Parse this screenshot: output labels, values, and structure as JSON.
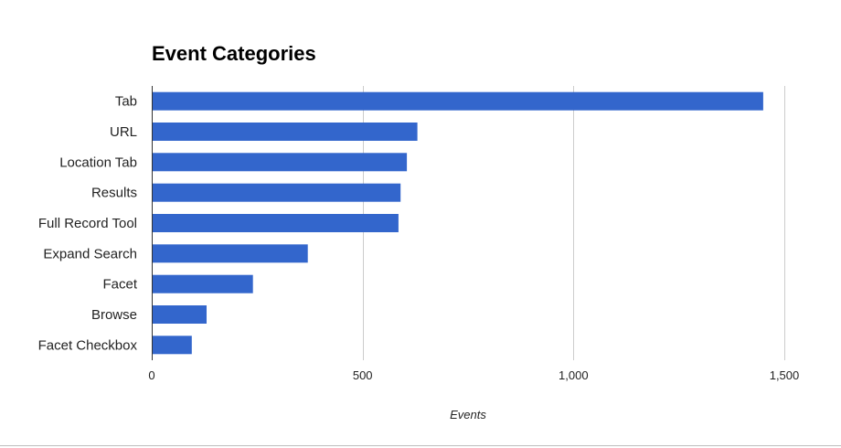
{
  "chart_data": {
    "type": "bar",
    "orientation": "horizontal",
    "title": "Event Categories",
    "xlabel": "Events",
    "ylabel": "",
    "categories": [
      "Tab",
      "URL",
      "Location Tab",
      "Results",
      "Full Record Tool",
      "Expand Search",
      "Facet",
      "Browse",
      "Facet Checkbox"
    ],
    "values": [
      1450,
      630,
      605,
      590,
      585,
      370,
      240,
      130,
      95
    ],
    "xlim": [
      0,
      1500
    ],
    "xticks": [
      0,
      500,
      1000,
      1500
    ],
    "xtick_labels": [
      "0",
      "500",
      "1,000",
      "1,500"
    ],
    "grid": true,
    "legend": "none",
    "bar_color": "#3366cc",
    "gridline_color": "#cccccc",
    "axis_color": "#333333"
  }
}
